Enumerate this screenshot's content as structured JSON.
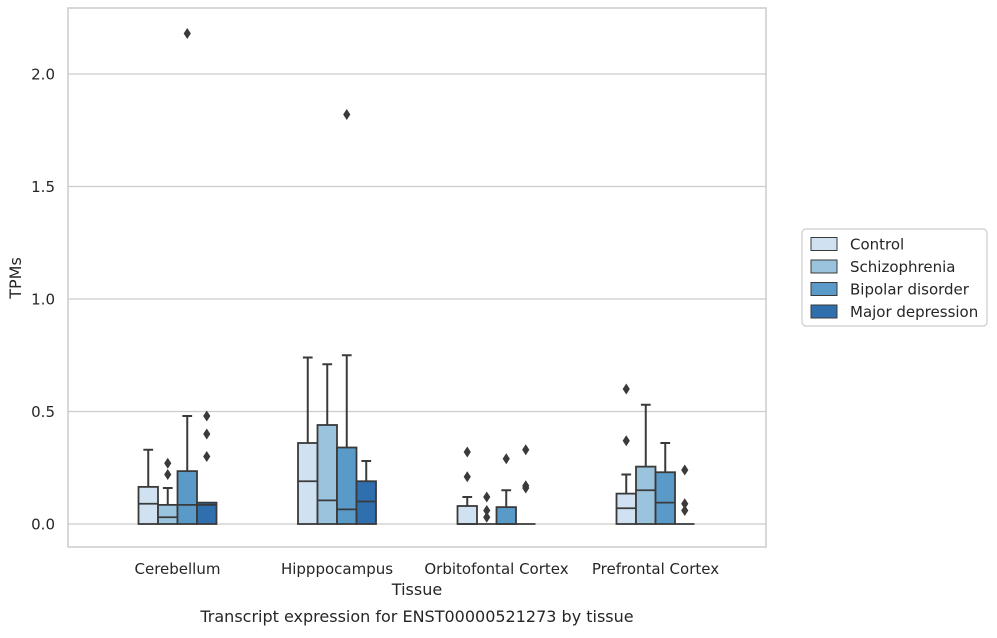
{
  "caption": "Transcript expression for ENST00000521273 by tissue",
  "chart_data": {
    "type": "boxplot",
    "xlabel": "Tissue",
    "ylabel": "TPMs",
    "ylim": [
      -0.11,
      2.3
    ],
    "yticks": [
      0.0,
      0.5,
      1.0,
      1.5,
      2.0
    ],
    "ytick_labels": [
      "0.0",
      "0.5",
      "1.0",
      "1.5",
      "2.0"
    ],
    "grid": "horizontal",
    "legend_position": "right-outside",
    "categories": [
      "Cerebellum",
      "Hipppocampus",
      "Orbitofontal Cortex",
      "Prefrontal Cortex"
    ],
    "series": [
      {
        "name": "Control",
        "color": "#d0e1f2",
        "boxes": [
          {
            "whisker_low": 0.0,
            "q1": 0.0,
            "median": 0.09,
            "q3": 0.165,
            "whisker_high": 0.33,
            "outliers": []
          },
          {
            "whisker_low": 0.0,
            "q1": 0.0,
            "median": 0.19,
            "q3": 0.36,
            "whisker_high": 0.74,
            "outliers": []
          },
          {
            "whisker_low": 0.0,
            "q1": 0.0,
            "median": 0.0,
            "q3": 0.08,
            "whisker_high": 0.12,
            "outliers": [
              0.21,
              0.32
            ]
          },
          {
            "whisker_low": 0.0,
            "q1": 0.0,
            "median": 0.07,
            "q3": 0.135,
            "whisker_high": 0.22,
            "outliers": [
              0.37,
              0.6
            ]
          }
        ]
      },
      {
        "name": "Schizophrenia",
        "color": "#9ac3dd",
        "boxes": [
          {
            "whisker_low": 0.0,
            "q1": 0.0,
            "median": 0.03,
            "q3": 0.085,
            "whisker_high": 0.16,
            "outliers": [
              0.22,
              0.27
            ]
          },
          {
            "whisker_low": 0.0,
            "q1": 0.0,
            "median": 0.105,
            "q3": 0.44,
            "whisker_high": 0.71,
            "outliers": []
          },
          {
            "whisker_low": 0.0,
            "q1": 0.0,
            "median": 0.0,
            "q3": 0.0,
            "whisker_high": 0.0,
            "outliers": [
              0.03,
              0.06,
              0.12
            ]
          },
          {
            "whisker_low": 0.0,
            "q1": 0.0,
            "median": 0.15,
            "q3": 0.255,
            "whisker_high": 0.53,
            "outliers": []
          }
        ]
      },
      {
        "name": "Bipolar disorder",
        "color": "#5a9ac8",
        "boxes": [
          {
            "whisker_low": 0.0,
            "q1": 0.0,
            "median": 0.085,
            "q3": 0.235,
            "whisker_high": 0.48,
            "outliers": [
              2.18
            ]
          },
          {
            "whisker_low": 0.0,
            "q1": 0.0,
            "median": 0.065,
            "q3": 0.34,
            "whisker_high": 0.75,
            "outliers": [
              1.82
            ]
          },
          {
            "whisker_low": 0.0,
            "q1": 0.0,
            "median": 0.0,
            "q3": 0.075,
            "whisker_high": 0.15,
            "outliers": [
              0.29
            ]
          },
          {
            "whisker_low": 0.0,
            "q1": 0.0,
            "median": 0.095,
            "q3": 0.23,
            "whisker_high": 0.36,
            "outliers": []
          }
        ]
      },
      {
        "name": "Major depression",
        "color": "#2f6fae",
        "boxes": [
          {
            "whisker_low": 0.0,
            "q1": 0.0,
            "median": 0.085,
            "q3": 0.095,
            "whisker_high": 0.095,
            "outliers": [
              0.3,
              0.4,
              0.48
            ]
          },
          {
            "whisker_low": 0.0,
            "q1": 0.0,
            "median": 0.1,
            "q3": 0.19,
            "whisker_high": 0.28,
            "outliers": []
          },
          {
            "whisker_low": 0.0,
            "q1": 0.0,
            "median": 0.0,
            "q3": 0.0,
            "whisker_high": 0.0,
            "outliers": [
              0.16,
              0.17,
              0.33
            ]
          },
          {
            "whisker_low": 0.0,
            "q1": 0.0,
            "median": 0.0,
            "q3": 0.0,
            "whisker_high": 0.0,
            "outliers": [
              0.06,
              0.09,
              0.24
            ]
          }
        ]
      }
    ]
  }
}
